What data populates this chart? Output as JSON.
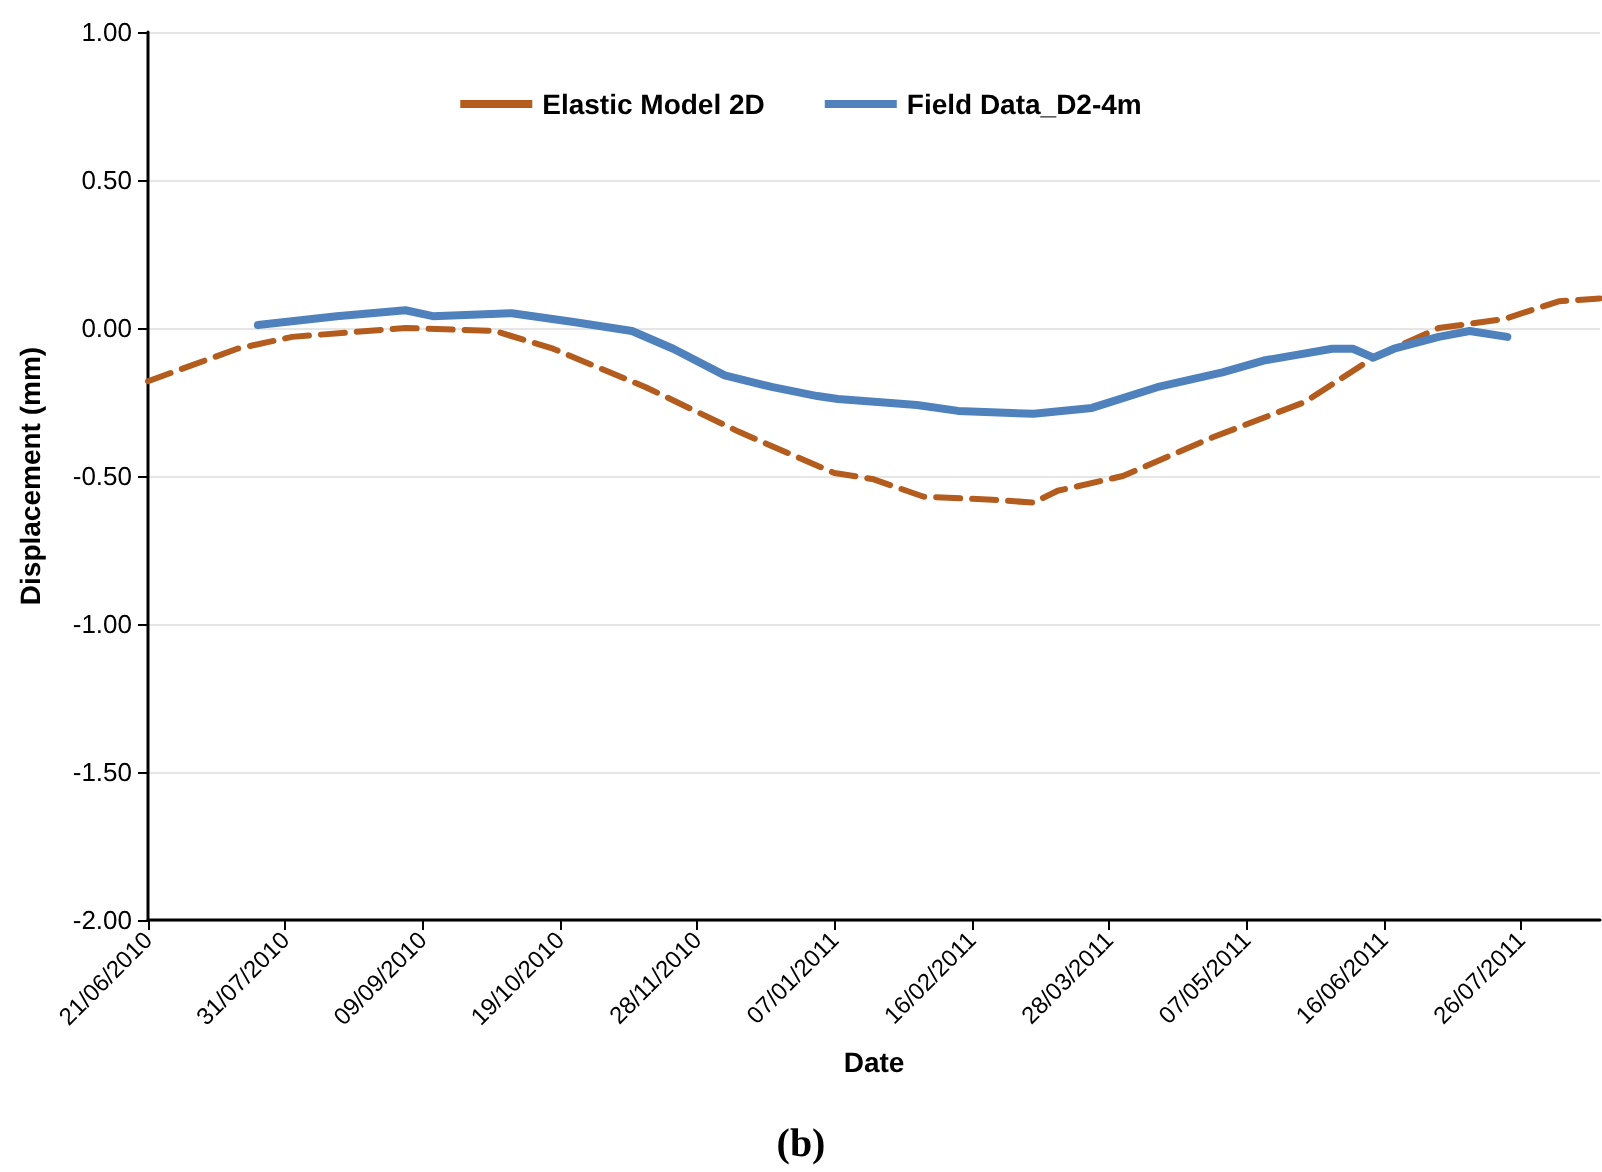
{
  "chart_data": {
    "type": "line",
    "xlabel": "Date",
    "ylabel": "Displacement (mm)",
    "annotations": [
      "(b)"
    ],
    "xlim": [
      "2010-06-21",
      "2011-08-18"
    ],
    "xticks": [
      {
        "value": "2010-06-21",
        "label": "21/06/2010"
      },
      {
        "value": "2010-07-31",
        "label": "31/07/2010"
      },
      {
        "value": "2010-09-09",
        "label": "09/09/2010"
      },
      {
        "value": "2010-10-19",
        "label": "19/10/2010"
      },
      {
        "value": "2010-11-28",
        "label": "28/11/2010"
      },
      {
        "value": "2011-01-07",
        "label": "07/01/2011"
      },
      {
        "value": "2011-02-16",
        "label": "16/02/2011"
      },
      {
        "value": "2011-03-28",
        "label": "28/03/2011"
      },
      {
        "value": "2011-05-07",
        "label": "07/05/2011"
      },
      {
        "value": "2011-06-16",
        "label": "16/06/2011"
      },
      {
        "value": "2011-07-26",
        "label": "26/07/2011"
      }
    ],
    "ylim": [
      -2,
      1
    ],
    "yticks": [
      {
        "value": -2,
        "label": "-2.00"
      },
      {
        "value": -1.5,
        "label": "-1.50"
      },
      {
        "value": -1,
        "label": "-1.00"
      },
      {
        "value": -0.5,
        "label": "-0.50"
      },
      {
        "value": 0,
        "label": "0.00"
      },
      {
        "value": 0.5,
        "label": "0.50"
      },
      {
        "value": 1,
        "label": "1.00"
      }
    ],
    "grid": "y",
    "legend": "top",
    "marker": "none",
    "series": [
      {
        "name": "Elastic Model 2D",
        "color": "#b35c1e",
        "line_style": "dashed",
        "x": [
          "2010-06-21",
          "2010-07-17",
          "2010-08-02",
          "2010-09-04",
          "2010-09-30",
          "2010-10-17",
          "2010-11-13",
          "2010-12-10",
          "2011-01-07",
          "2011-01-18",
          "2011-02-02",
          "2011-02-22",
          "2011-03-06",
          "2011-03-13",
          "2011-04-01",
          "2011-04-27",
          "2011-05-24",
          "2011-06-13",
          "2011-07-02",
          "2011-07-21",
          "2011-08-06",
          "2011-08-18"
        ],
        "values": [
          -0.18,
          -0.07,
          -0.03,
          0.0,
          -0.01,
          -0.07,
          -0.2,
          -0.35,
          -0.49,
          -0.51,
          -0.57,
          -0.58,
          -0.59,
          -0.55,
          -0.5,
          -0.37,
          -0.25,
          -0.1,
          0.0,
          0.03,
          0.09,
          0.1
        ]
      },
      {
        "name": "Field Data_D2-4m",
        "color": "#4f81bd",
        "line_style": "solid",
        "x": [
          "2010-07-23",
          "2010-08-15",
          "2010-09-04",
          "2010-09-12",
          "2010-10-05",
          "2010-10-23",
          "2010-11-09",
          "2010-11-21",
          "2010-12-06",
          "2010-12-20",
          "2011-01-02",
          "2011-01-08",
          "2011-01-31",
          "2011-02-12",
          "2011-03-06",
          "2011-03-23",
          "2011-04-11",
          "2011-04-30",
          "2011-05-12",
          "2011-06-01",
          "2011-06-07",
          "2011-06-13",
          "2011-06-19",
          "2011-07-02",
          "2011-07-11",
          "2011-07-22"
        ],
        "values": [
          0.01,
          0.04,
          0.06,
          0.04,
          0.05,
          0.02,
          -0.01,
          -0.07,
          -0.16,
          -0.2,
          -0.23,
          -0.24,
          -0.26,
          -0.28,
          -0.29,
          -0.27,
          -0.2,
          -0.15,
          -0.11,
          -0.07,
          -0.07,
          -0.1,
          -0.07,
          -0.03,
          -0.01,
          -0.03
        ]
      }
    ]
  }
}
